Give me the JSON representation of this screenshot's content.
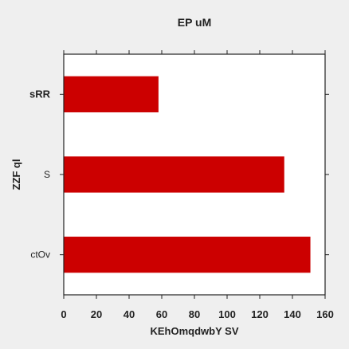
{
  "chart_data": {
    "type": "bar",
    "orientation": "horizontal",
    "title": "EP uM",
    "xlabel": "KEhOmqdwbY SV",
    "ylabel": "ZZF ql",
    "categories": [
      "sRR",
      "S",
      "ctOv"
    ],
    "category_bold": [
      true,
      false,
      false
    ],
    "values": [
      58,
      135,
      151
    ],
    "xlim": [
      0,
      160
    ],
    "xticks": [
      0,
      20,
      40,
      60,
      80,
      100,
      120,
      140,
      160
    ],
    "grid": false,
    "legend": "none",
    "colors": {
      "bar": "#cc0000",
      "plot_background": "#ffffff",
      "figure_background": "#efefef",
      "axis": "#222222"
    }
  }
}
